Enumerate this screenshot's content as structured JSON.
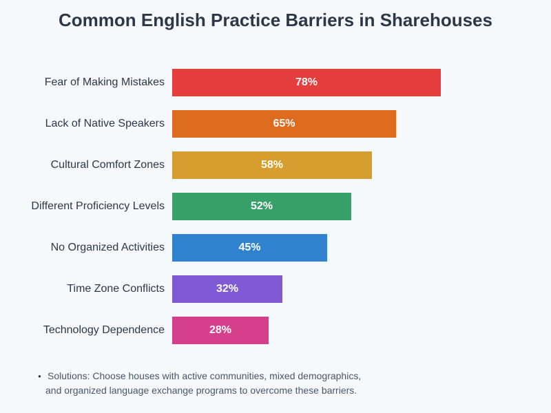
{
  "header": {
    "title": "Common English Practice Barriers in Sharehouses"
  },
  "chart_data": {
    "type": "bar",
    "orientation": "horizontal",
    "title": "Common English Practice Barriers in Sharehouses",
    "xlabel": "",
    "ylabel": "",
    "unit": "%",
    "xlim": [
      0,
      100
    ],
    "grid": false,
    "legend": "none",
    "categories": [
      "Fear of Making Mistakes",
      "Lack of Native Speakers",
      "Cultural Comfort Zones",
      "Different Proficiency Levels",
      "No Organized Activities",
      "Time Zone Conflicts",
      "Technology Dependence"
    ],
    "values": [
      78,
      65,
      58,
      52,
      45,
      32,
      28
    ],
    "colors": [
      "#e53e3e",
      "#dd6b20",
      "#d69e2e",
      "#38a169",
      "#3182ce",
      "#805ad5",
      "#d53f8c"
    ],
    "value_labels": [
      "78%",
      "65%",
      "58%",
      "52%",
      "45%",
      "32%",
      "28%"
    ]
  },
  "footer": {
    "icon": "lightbulb-icon",
    "line1": "Solutions: Choose houses with active communities, mixed demographics,",
    "line2": "and organized language exchange programs to overcome these barriers."
  }
}
